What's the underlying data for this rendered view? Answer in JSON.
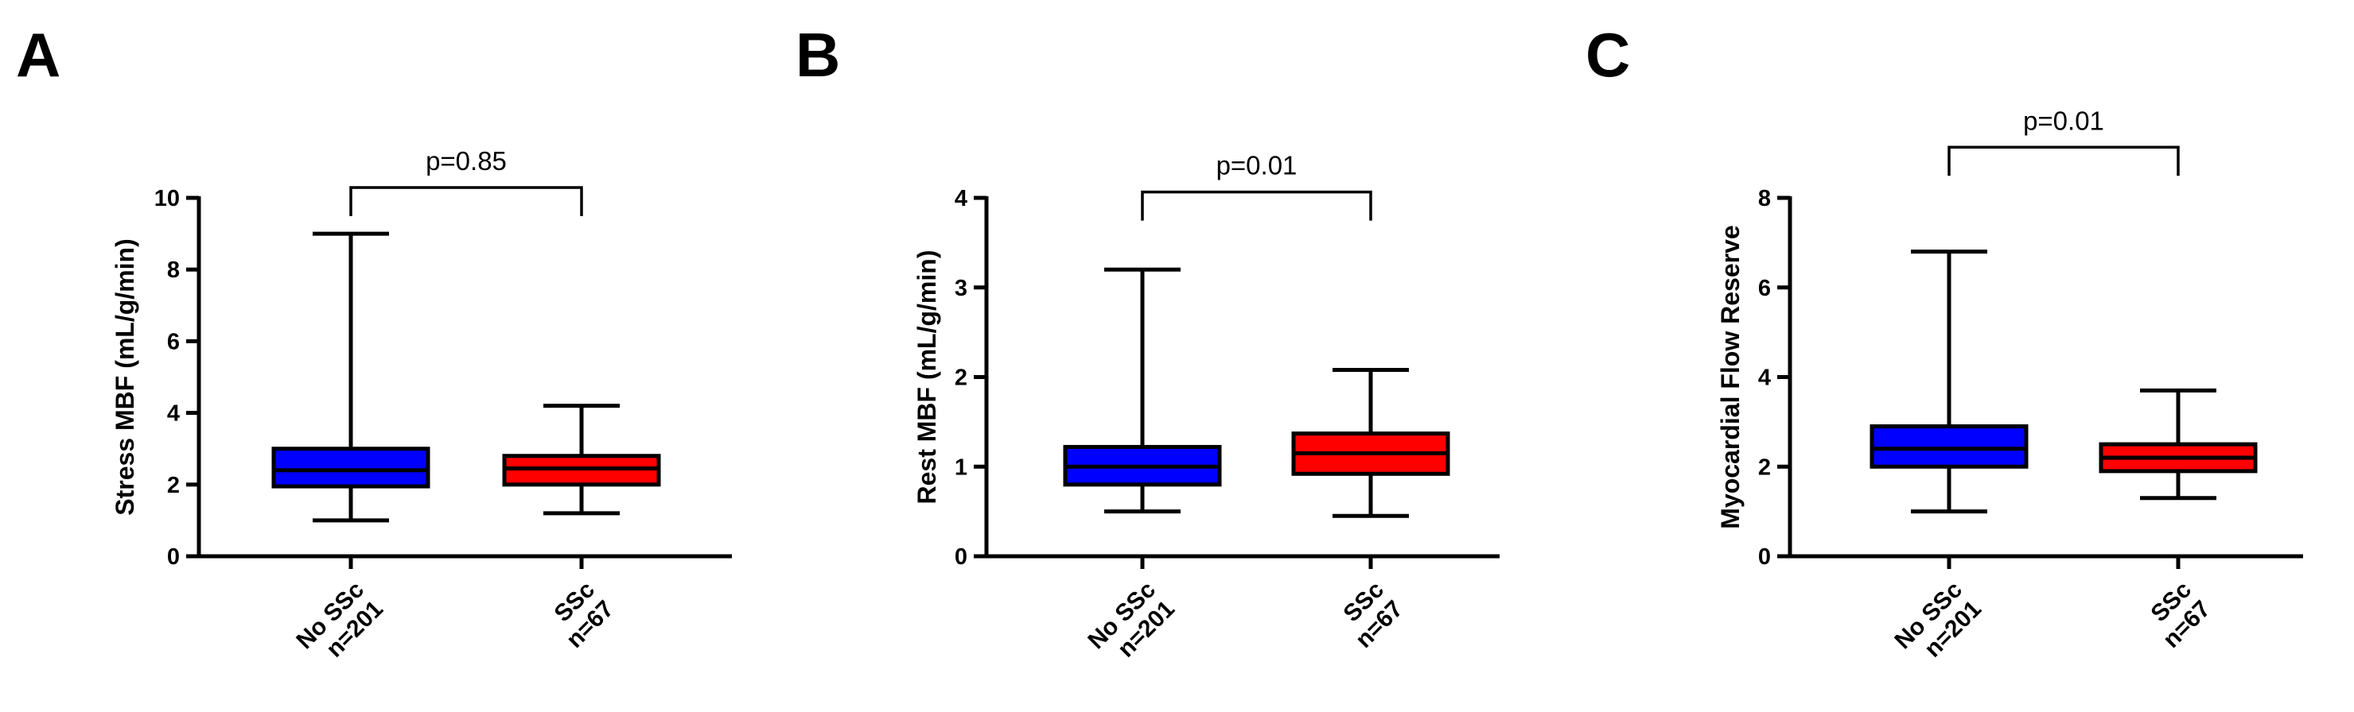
{
  "chart_data": [
    {
      "type": "box",
      "panel_label": "A",
      "ylabel": "Stress MBF (mL/g/min)",
      "ylim": [
        0,
        10
      ],
      "yticks": [
        0,
        2,
        4,
        6,
        8,
        10
      ],
      "grid": false,
      "categories": [
        {
          "lines": [
            "No SSc",
            "n=201"
          ],
          "min": 1.0,
          "q1": 1.95,
          "median": 2.4,
          "q3": 3.0,
          "max": 9.0,
          "color": "#0000ff"
        },
        {
          "lines": [
            "SSc",
            "n=67"
          ],
          "min": 1.2,
          "q1": 2.0,
          "median": 2.45,
          "q3": 2.8,
          "max": 4.2,
          "color": "#ff0000"
        }
      ],
      "p_value": "p=0.85",
      "bracket_level": 10.0
    },
    {
      "type": "box",
      "panel_label": "B",
      "ylabel": "Rest MBF (mL/g/min)",
      "ylim": [
        0,
        4
      ],
      "yticks": [
        0,
        1,
        2,
        3,
        4
      ],
      "grid": false,
      "categories": [
        {
          "lines": [
            "No SSc",
            "n=201"
          ],
          "min": 0.5,
          "q1": 0.8,
          "median": 1.0,
          "q3": 1.22,
          "max": 3.2,
          "color": "#0000ff"
        },
        {
          "lines": [
            "SSc",
            "n=67"
          ],
          "min": 0.45,
          "q1": 0.92,
          "median": 1.15,
          "q3": 1.37,
          "max": 2.08,
          "color": "#ff0000"
        }
      ],
      "p_value": "p=0.01",
      "bracket_level": 3.95
    },
    {
      "type": "box",
      "panel_label": "C",
      "ylabel": "Myocardial Flow Reserve",
      "ylim": [
        0,
        8
      ],
      "yticks": [
        0,
        2,
        4,
        6,
        8
      ],
      "grid": false,
      "categories": [
        {
          "lines": [
            "No SSc",
            "n=201"
          ],
          "min": 1.0,
          "q1": 2.0,
          "median": 2.4,
          "q3": 2.9,
          "max": 6.8,
          "color": "#0000ff"
        },
        {
          "lines": [
            "SSc",
            "n=67"
          ],
          "min": 1.3,
          "q1": 1.9,
          "median": 2.2,
          "q3": 2.5,
          "max": 3.7,
          "color": "#ff0000"
        }
      ],
      "p_value": "p=0.01",
      "bracket_level": 8.9
    }
  ]
}
